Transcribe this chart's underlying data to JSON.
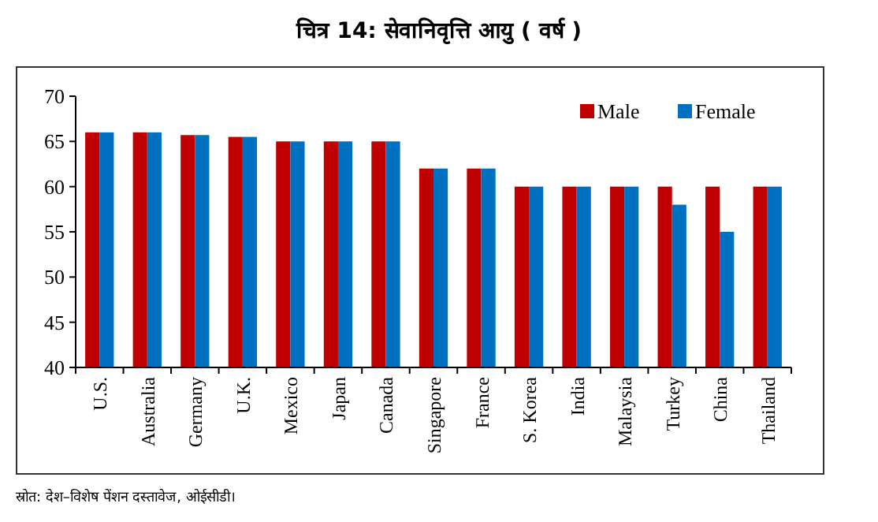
{
  "chart_data": {
    "type": "bar",
    "title": "चित्र 14: सेवानिवृत्ति आयु ( वर्ष )",
    "categories": [
      "U.S.",
      "Australia",
      "Germany",
      "U.K.",
      "Mexico",
      "Japan",
      "Canada",
      "Singapore",
      "France",
      "S. Korea",
      "India",
      "Malaysia",
      "Turkey",
      "China",
      "Thailand"
    ],
    "series": [
      {
        "name": "Male",
        "color": "#c00000",
        "values": [
          66,
          66,
          65.7,
          65.5,
          65,
          65,
          65,
          62,
          62,
          60,
          60,
          60,
          60,
          60,
          60
        ]
      },
      {
        "name": "Female",
        "color": "#0070c0",
        "values": [
          66,
          66,
          65.7,
          65.5,
          65,
          65,
          65,
          62,
          62,
          60,
          60,
          60,
          58,
          55,
          60
        ]
      }
    ],
    "ylim": [
      40,
      70
    ],
    "yticks": [
      40,
      45,
      50,
      55,
      60,
      65,
      70
    ],
    "grid": false,
    "legend": "top right",
    "annotations": [
      "स्रोत: देश–विशेष पेंशन दस्तावेज, ओईसीडी।"
    ]
  }
}
